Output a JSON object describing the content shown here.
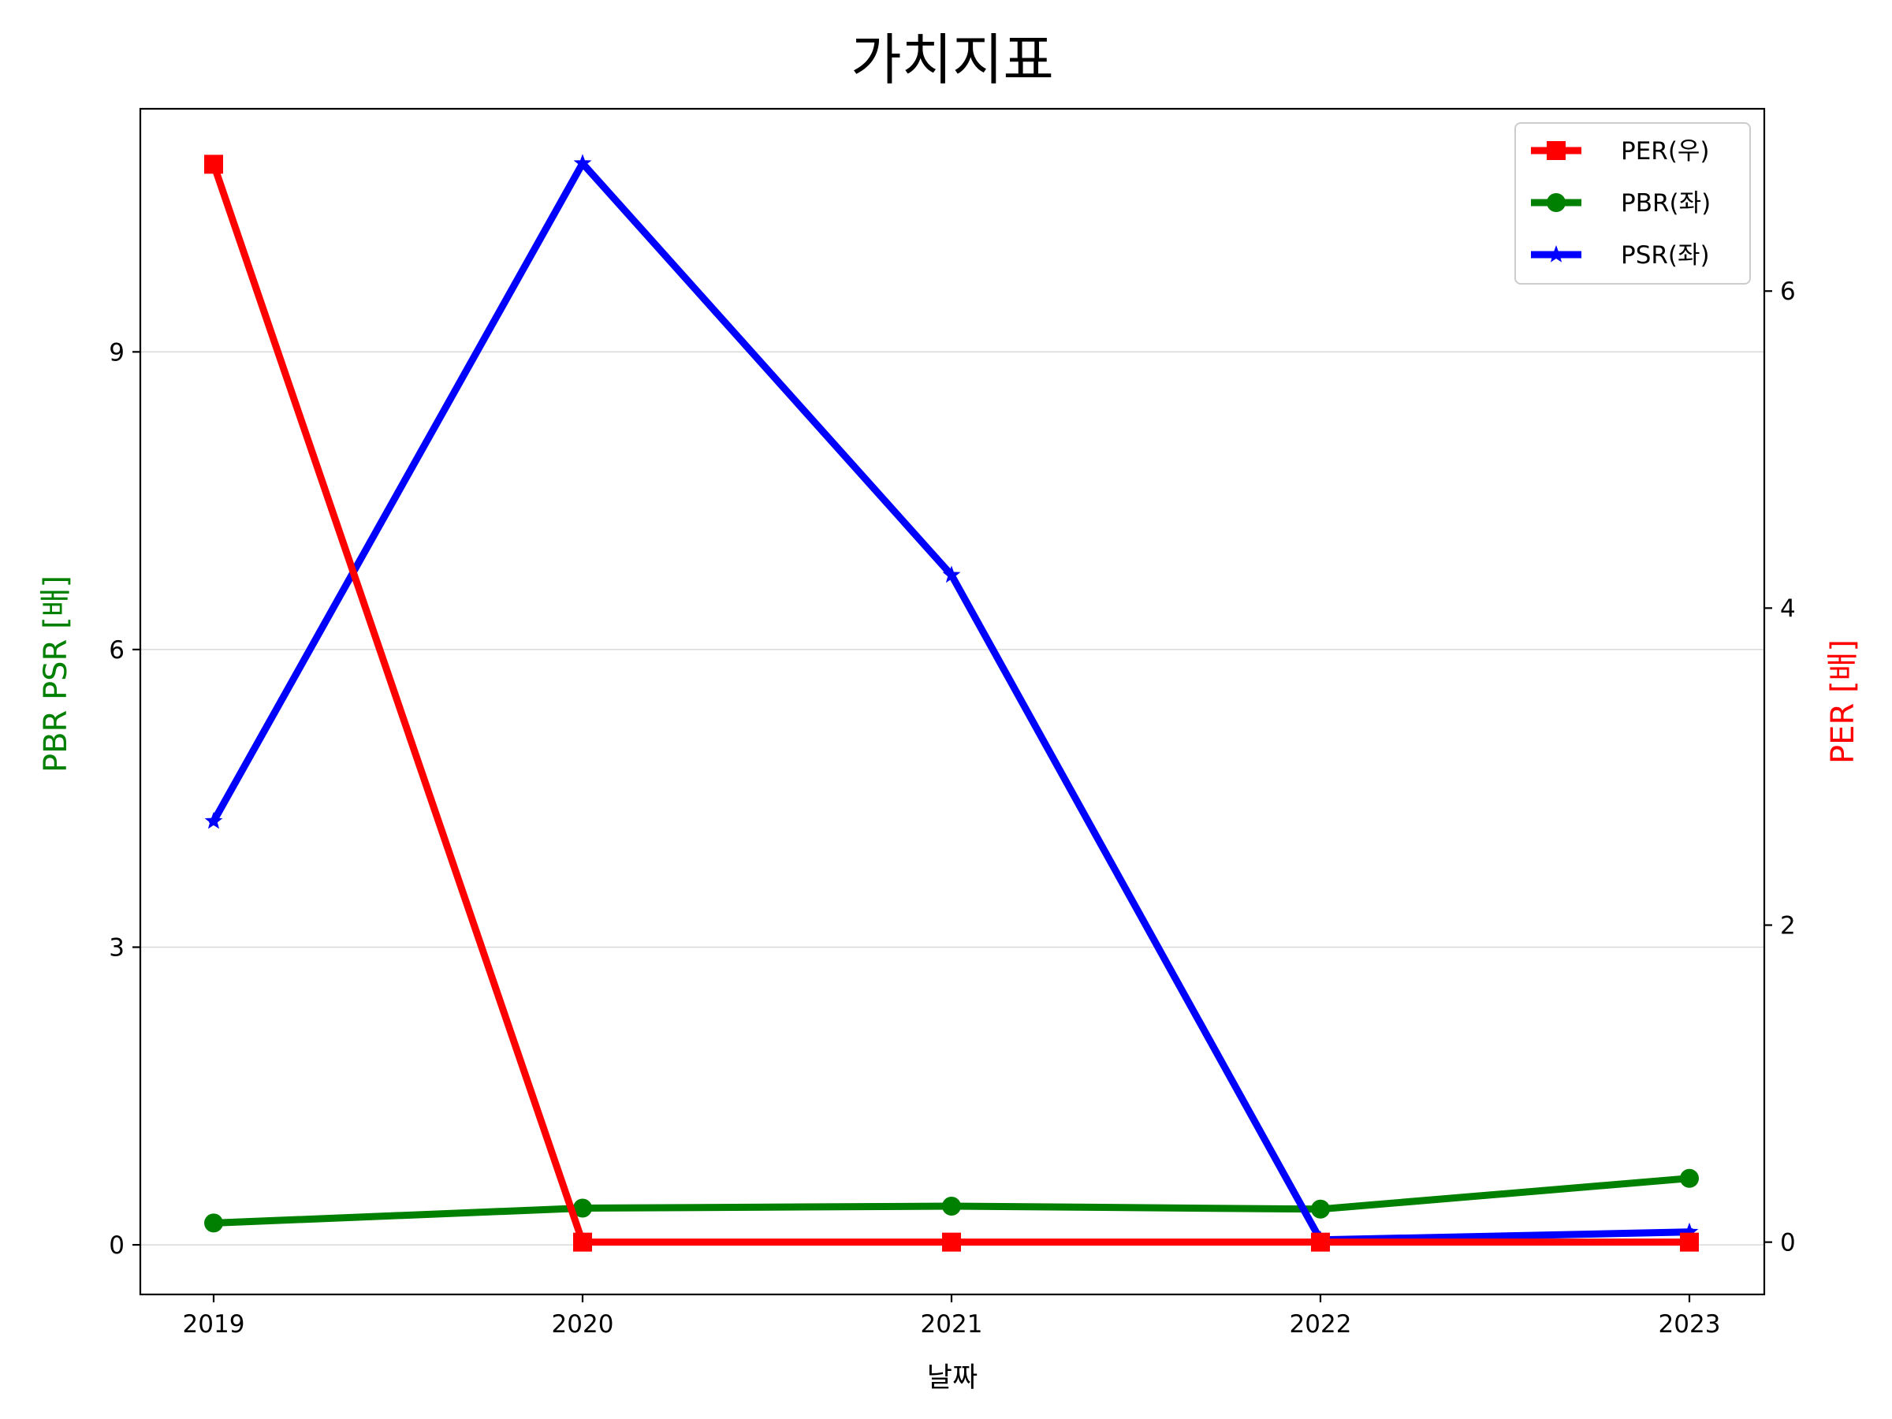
{
  "chart_data": {
    "type": "line",
    "title": "가치지표",
    "xlabel": "날짜",
    "ylabel_left": "PBR PSR [배]",
    "ylabel_right": "PER [배]",
    "categories": [
      "2019",
      "2020",
      "2021",
      "2022",
      "2023"
    ],
    "ylim_left": [
      -0.5,
      11.45
    ],
    "ylim_right": [
      -0.33,
      7.15
    ],
    "yticks_left": [
      0,
      3,
      6,
      9
    ],
    "yticks_right": [
      0,
      2,
      4,
      6
    ],
    "grid": "horizontal (left axis)",
    "legend_position": "top-right",
    "series": [
      {
        "name": "PER(우)",
        "axis": "right",
        "marker": "square",
        "color": "#ff0000",
        "values": [
          6.8,
          0.0,
          0.0,
          0.0,
          0.0
        ]
      },
      {
        "name": "PBR(좌)",
        "axis": "left",
        "marker": "circle",
        "color": "#008000",
        "values": [
          0.22,
          0.37,
          0.39,
          0.36,
          0.67
        ]
      },
      {
        "name": "PSR(좌)",
        "axis": "left",
        "marker": "star",
        "color": "#0000ff",
        "values": [
          4.27,
          10.9,
          6.75,
          0.05,
          0.13
        ]
      }
    ]
  },
  "colors": {
    "left_axis_label": "#008000",
    "right_axis_label": "#ff0000"
  }
}
